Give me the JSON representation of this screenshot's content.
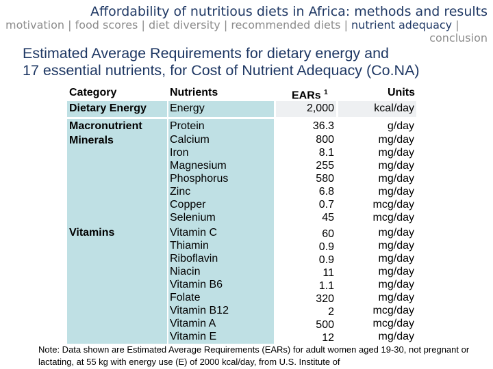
{
  "title": "Affordability of nutritious diets in Africa: methods and results",
  "nav": {
    "items": [
      "motivation",
      "food scores",
      "diet diversity",
      "recommended diets",
      "nutrient adequacy",
      "conclusion"
    ],
    "active": "nutrient adequacy"
  },
  "heading": {
    "line1": "Estimated Average Requirements for dietary energy and",
    "line2": "17 essential nutrients, for Cost of Nutrient Adequacy (Co.NA)"
  },
  "table": {
    "headers": {
      "category": "Category",
      "nutrients": "Nutrients",
      "ears": "EARs",
      "ears_sup": "1",
      "units": "Units"
    },
    "categories": {
      "energy": "Dietary Energy",
      "macro": "Macronutrient",
      "minerals": "Minerals",
      "vitamins": "Vitamins"
    },
    "rows": [
      {
        "nutrient": "Energy",
        "ear": "2,000",
        "unit": "kcal/day"
      },
      {
        "nutrient": "Protein",
        "ear": "36.3",
        "unit": "g/day"
      },
      {
        "nutrient": "Calcium",
        "ear": "800",
        "unit": "mg/day"
      },
      {
        "nutrient": "Iron",
        "ear": "8.1",
        "unit": "mg/day"
      },
      {
        "nutrient": "Magnesium",
        "ear": "255",
        "unit": "mg/day"
      },
      {
        "nutrient": "Phosphorus",
        "ear": "580",
        "unit": "mg/day"
      },
      {
        "nutrient": "Zinc",
        "ear": "6.8",
        "unit": "mg/day"
      },
      {
        "nutrient": "Copper",
        "ear": "0.7",
        "unit": "mcg/day"
      },
      {
        "nutrient": "Selenium",
        "ear": "45",
        "unit": "mcg/day"
      },
      {
        "nutrient": "Vitamin C",
        "ear": "60",
        "unit": "mg/day"
      },
      {
        "nutrient": "Thiamin",
        "ear": "0.9",
        "unit": "mg/day"
      },
      {
        "nutrient": "Riboflavin",
        "ear": "0.9",
        "unit": "mg/day"
      },
      {
        "nutrient": "Niacin",
        "ear": "11",
        "unit": "mg/day"
      },
      {
        "nutrient": "Vitamin B6",
        "ear": "1.1",
        "unit": "mg/day"
      },
      {
        "nutrient": "Folate",
        "ear": "320",
        "unit": "mg/day"
      },
      {
        "nutrient": "Vitamin B12",
        "ear": "2",
        "unit": "mcg/day"
      },
      {
        "nutrient": "Vitamin A",
        "ear": "500",
        "unit": "mcg/day"
      },
      {
        "nutrient": "Vitamin E",
        "ear": "12",
        "unit": "mg/day"
      }
    ]
  },
  "note": "Note: Data shown are Estimated Average Requirements (EARs) for adult women aged 19-30, not pregnant or lactating, at 55 kg with energy use (E) of 2000 kcal/day, from U.S. Institute of"
}
